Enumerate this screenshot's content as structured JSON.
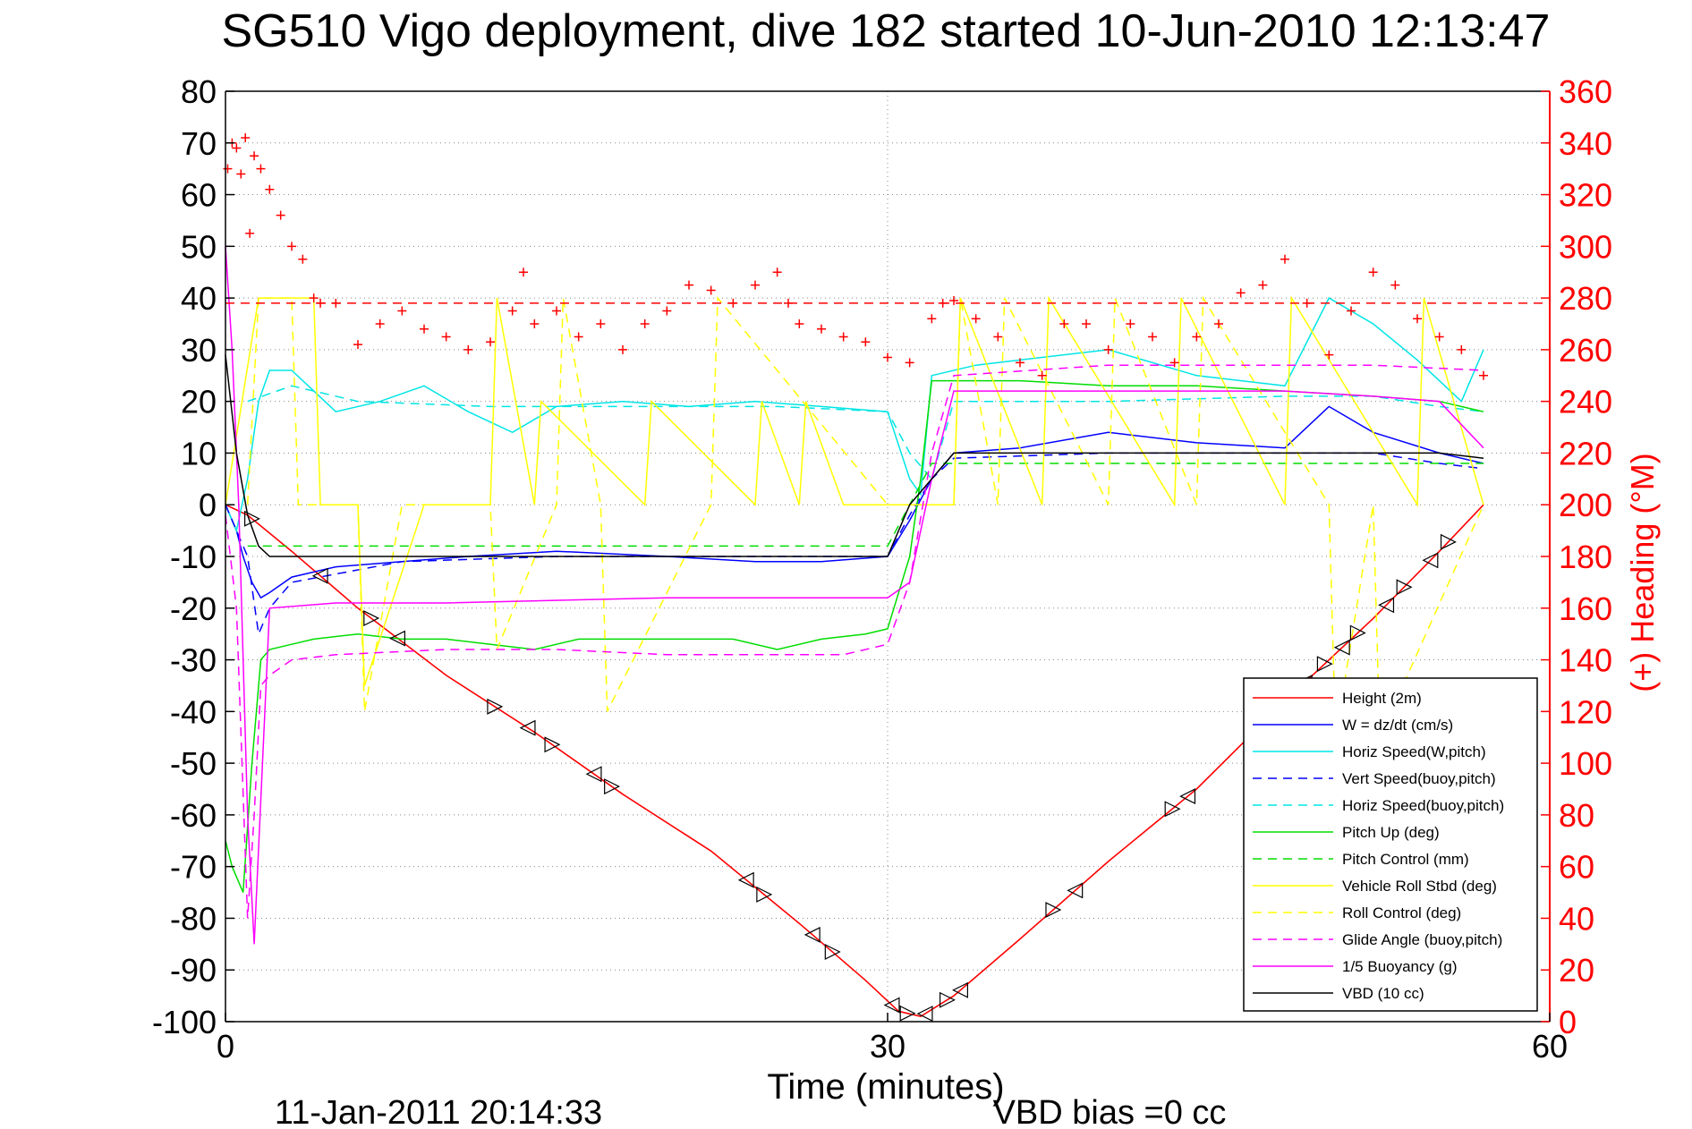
{
  "chart_data": {
    "type": "line",
    "title": "SG510 Vigo deployment, dive 182 started 10-Jun-2010 12:13:47",
    "xlabel": "Time (minutes)",
    "ylabel_right": "(+) Heading (°M)",
    "footer_left": "11-Jan-2011 20:14:33",
    "footer_right": "VBD bias =0 cc",
    "xlim": [
      0,
      60
    ],
    "ylim_left": [
      -100,
      80
    ],
    "ylim_right": [
      0,
      360
    ],
    "xticks": [
      "0",
      "30",
      "60"
    ],
    "yticks_left": [
      "80",
      "70",
      "60",
      "50",
      "40",
      "30",
      "20",
      "10",
      "0",
      "-10",
      "-20",
      "-30",
      "-40",
      "-50",
      "-60",
      "-70",
      "-80",
      "-90",
      "-100"
    ],
    "yticks_right": [
      "360",
      "340",
      "320",
      "300",
      "280",
      "260",
      "240",
      "220",
      "200",
      "180",
      "160",
      "140",
      "120",
      "100",
      "80",
      "60",
      "40",
      "20",
      "0"
    ],
    "grid": true,
    "legend_position": "bottom-right",
    "colors": {
      "red": "#ff0000",
      "blue": "#0000ff",
      "cyan": "#00e5e5",
      "green": "#00dd00",
      "yellow": "#ffff00",
      "magenta": "#ff00ff",
      "black": "#000000"
    },
    "series": [
      {
        "name": "Height (2m)",
        "color": "#ff0000",
        "dash": "solid",
        "x": [
          0,
          1,
          3,
          6,
          10,
          14,
          18,
          22,
          26,
          29,
          30.5,
          31.5,
          33,
          36,
          40,
          44,
          48,
          52,
          55,
          57
        ],
        "y": [
          0,
          -2,
          -9,
          -20,
          -33,
          -44,
          -56,
          -67,
          -81,
          -92,
          -98,
          -99,
          -95,
          -84,
          -69,
          -55,
          -38,
          -22,
          -9,
          0
        ]
      },
      {
        "name": "W = dz/dt (cm/s)",
        "color": "#0000ff",
        "dash": "solid",
        "x": [
          0,
          0.5,
          0.8,
          1.2,
          1.6,
          2,
          3,
          5,
          8,
          11,
          15,
          20,
          24,
          27,
          30,
          31,
          32,
          33,
          36,
          40,
          44,
          48,
          50,
          52,
          55,
          57
        ],
        "y": [
          0,
          -5,
          -10,
          -15,
          -18,
          -17,
          -14,
          -12,
          -11,
          -10,
          -9,
          -10,
          -11,
          -11,
          -10,
          -3,
          5,
          10,
          11,
          14,
          12,
          11,
          19,
          14,
          10,
          8
        ]
      },
      {
        "name": "Horiz Speed(W,pitch)",
        "color": "#00e5e5",
        "dash": "solid",
        "x": [
          0,
          0.5,
          1,
          1.5,
          2,
          3,
          4,
          5,
          7,
          9,
          11,
          13,
          15,
          18,
          21,
          24,
          27,
          30,
          31,
          31.5,
          32,
          34,
          36,
          40,
          44,
          48,
          50,
          52,
          54,
          56,
          57
        ],
        "y": [
          0,
          -5,
          5,
          20,
          26,
          26,
          22,
          18,
          20,
          23,
          18,
          14,
          19,
          20,
          19,
          20,
          19,
          18,
          5,
          2,
          25,
          27,
          28,
          30,
          25,
          23,
          40,
          35,
          28,
          20,
          30
        ]
      },
      {
        "name": "Vert Speed(buoy,pitch)",
        "color": "#0000ff",
        "dash": "dashed",
        "x": [
          0,
          1,
          1.5,
          2,
          3,
          8,
          15,
          20,
          25,
          30,
          31,
          32,
          33,
          40,
          48,
          52,
          55,
          57
        ],
        "y": [
          0,
          -10,
          -25,
          -20,
          -15,
          -11,
          -10,
          -10,
          -10,
          -10,
          -2,
          5,
          9,
          10,
          10,
          10,
          8,
          7
        ]
      },
      {
        "name": "Horiz Speed(buoy,pitch)",
        "color": "#00e5e5",
        "dash": "dashed",
        "x": [
          1,
          3,
          6,
          12,
          20,
          25,
          30,
          31,
          32,
          33,
          40,
          48,
          52,
          55,
          57
        ],
        "y": [
          20,
          23,
          20,
          19,
          19,
          19,
          18,
          10,
          5,
          20,
          20,
          21,
          21,
          19,
          18
        ]
      },
      {
        "name": "Pitch Up (deg)",
        "color": "#00dd00",
        "dash": "solid",
        "x": [
          0,
          0.3,
          0.8,
          1.2,
          1.6,
          2,
          3,
          4,
          6,
          8,
          10,
          14,
          16,
          20,
          23,
          25,
          27,
          29,
          30,
          31,
          31.5,
          32,
          36,
          40,
          44,
          48,
          52,
          55,
          57
        ],
        "y": [
          -65,
          -70,
          -75,
          -50,
          -30,
          -28,
          -27,
          -26,
          -25,
          -26,
          -26,
          -28,
          -26,
          -26,
          -26,
          -28,
          -26,
          -25,
          -24,
          -10,
          5,
          24,
          24,
          23,
          23,
          22,
          21,
          20,
          18
        ]
      },
      {
        "name": "Pitch Control (mm)",
        "color": "#00dd00",
        "dash": "dashed",
        "x": [
          1,
          2,
          10,
          20,
          30,
          31,
          32,
          33,
          40,
          48,
          57
        ],
        "y": [
          -8,
          -8,
          -8,
          -8,
          -8,
          0,
          8,
          8,
          8,
          8,
          8
        ]
      },
      {
        "name": "Vehicle Roll Stbd (deg)",
        "color": "#ffff00",
        "dash": "solid",
        "x": [
          0,
          1.5,
          2,
          4,
          4.3,
          6,
          6.3,
          9,
          9.3,
          12,
          12.3,
          14,
          14.3,
          19,
          19.3,
          24,
          24.3,
          26,
          26.3,
          28,
          30,
          32,
          33,
          33.3,
          37,
          37.3,
          43,
          43.3,
          48,
          48.3,
          54,
          54.3,
          57
        ],
        "y": [
          0,
          40,
          40,
          40,
          0,
          0,
          -35,
          0,
          0,
          0,
          40,
          0,
          20,
          0,
          20,
          0,
          20,
          0,
          20,
          0,
          0,
          0,
          0,
          40,
          0,
          40,
          0,
          40,
          0,
          40,
          0,
          40,
          0
        ]
      },
      {
        "name": "Roll Control (deg)",
        "color": "#ffff00",
        "dash": "dashed",
        "x": [
          1,
          1.5,
          3,
          3.3,
          6,
          6.3,
          8,
          8.3,
          12,
          12.3,
          15,
          15.3,
          17,
          17.3,
          22,
          22.3,
          30,
          33,
          33.3,
          35,
          35.3,
          40,
          40.3,
          44,
          44.3,
          50,
          50.3,
          52,
          52.3,
          57
        ],
        "y": [
          0,
          40,
          40,
          0,
          0,
          -40,
          0,
          0,
          0,
          -28,
          0,
          40,
          0,
          -40,
          0,
          40,
          0,
          0,
          40,
          0,
          40,
          0,
          40,
          0,
          40,
          0,
          -45,
          0,
          -45,
          0
        ]
      },
      {
        "name": "Glide Angle (buoy,pitch)",
        "color": "#ff00ff",
        "dash": "dashed",
        "x": [
          0,
          0.5,
          1,
          1.3,
          1.6,
          2,
          3,
          5,
          10,
          15,
          20,
          24,
          28,
          30,
          31,
          32,
          33,
          40,
          48,
          52,
          57
        ],
        "y": [
          -2,
          -20,
          -80,
          -60,
          -35,
          -33,
          -30,
          -29,
          -28,
          -28,
          -29,
          -29,
          -29,
          -27,
          -15,
          10,
          25,
          27,
          27,
          27,
          26
        ]
      },
      {
        "name": "1/5 Buoyancy (g)",
        "color": "#ff00ff",
        "dash": "solid",
        "x": [
          0,
          0.3,
          0.6,
          1,
          1.3,
          2,
          5,
          10,
          20,
          30,
          31,
          32,
          33,
          40,
          48,
          52,
          55,
          57
        ],
        "y": [
          50,
          30,
          0,
          -60,
          -85,
          -20,
          -19,
          -19,
          -18,
          -18,
          -15,
          5,
          22,
          22,
          22,
          21,
          20,
          11
        ]
      },
      {
        "name": "VBD (10 cc)",
        "color": "#000000",
        "dash": "solid",
        "x": [
          0,
          0.5,
          1,
          1.5,
          2,
          5,
          10,
          20,
          30,
          31,
          33,
          36,
          40,
          48,
          52,
          55,
          57
        ],
        "y": [
          29,
          10,
          -2,
          -8,
          -10,
          -10,
          -10,
          -10,
          -10,
          0,
          10,
          10,
          10,
          10,
          10,
          10,
          9
        ]
      }
    ],
    "heading_series": {
      "marker": "+",
      "color": "#ff0000",
      "axis": "right",
      "x": [
        0.1,
        0.3,
        0.5,
        0.7,
        0.9,
        1.1,
        1.3,
        1.6,
        2,
        2.5,
        3,
        3.5,
        4,
        4.3,
        5,
        6,
        7,
        8,
        9,
        10,
        11,
        12,
        13,
        13.5,
        14,
        15,
        16,
        17,
        18,
        19,
        20,
        21,
        22,
        23,
        24,
        25,
        25.5,
        26,
        27,
        28,
        29,
        30,
        31,
        32,
        32.5,
        33,
        34,
        35,
        36,
        37,
        38,
        39,
        40,
        41,
        42,
        43,
        44,
        45,
        46,
        47,
        48,
        49,
        50,
        51,
        52,
        53,
        54,
        55,
        56,
        57
      ],
      "y": [
        330,
        340,
        338,
        328,
        342,
        305,
        335,
        330,
        322,
        312,
        300,
        295,
        280,
        278,
        278,
        262,
        270,
        275,
        268,
        265,
        260,
        263,
        275,
        290,
        270,
        275,
        265,
        270,
        260,
        270,
        275,
        285,
        283,
        278,
        285,
        290,
        278,
        270,
        268,
        265,
        263,
        257,
        255,
        272,
        278,
        279,
        272,
        265,
        255,
        250,
        270,
        270,
        260,
        270,
        265,
        255,
        265,
        270,
        282,
        285,
        295,
        278,
        258,
        275,
        290,
        285,
        272,
        265,
        260,
        250
      ]
    },
    "heading_mean": 278,
    "pitch_zero_dashed": true
  }
}
